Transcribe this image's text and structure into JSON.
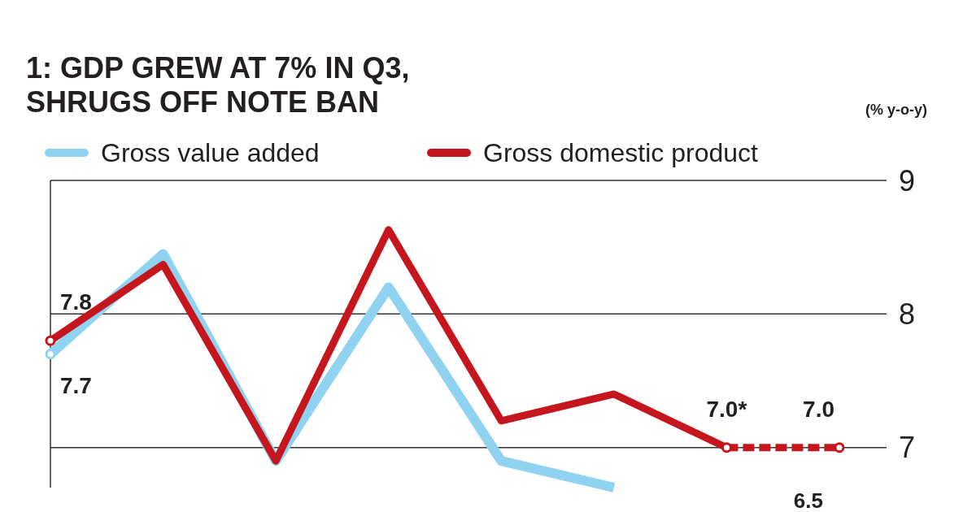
{
  "chart_data": {
    "type": "line",
    "title": "1: GDP GREW AT 7% IN Q3,\nSHRUGS OFF NOTE BAN",
    "ylabel": "(% y-o-y)",
    "categories": [
      null,
      null,
      null,
      null,
      null,
      null,
      null,
      null
    ],
    "series": [
      {
        "name": "Gross value added",
        "color": "#8fd3f0",
        "values": [
          7.7,
          8.45,
          6.9,
          8.2,
          6.9,
          6.7,
          null,
          null
        ],
        "value_labels": [
          "7.7",
          null,
          null,
          null,
          null,
          null,
          null,
          null
        ]
      },
      {
        "name": "Gross domestic product",
        "color": "#c4161c",
        "values": [
          7.8,
          8.37,
          6.9,
          8.63,
          7.2,
          7.4,
          7.0,
          null
        ],
        "value_labels": [
          "7.8",
          null,
          null,
          null,
          null,
          null,
          "7.0*",
          null
        ]
      },
      {
        "color": "#c4161c",
        "line_style": "dashed",
        "values": [
          null,
          null,
          null,
          null,
          null,
          null,
          7.0,
          7.0
        ],
        "value_labels": [
          null,
          null,
          null,
          null,
          null,
          null,
          null,
          "7.0"
        ]
      }
    ],
    "annotations": [
      "6.5"
    ],
    "ylim": [
      6.7,
      9
    ],
    "yticks": [
      7,
      8,
      9
    ],
    "grid": "y",
    "legend": "top left"
  }
}
